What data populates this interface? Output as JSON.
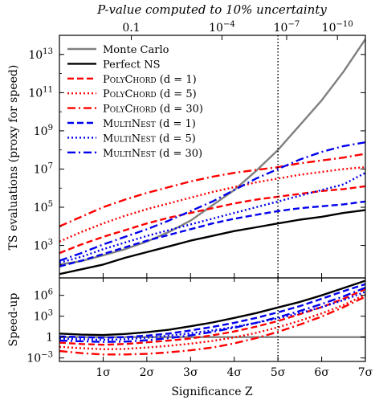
{
  "chart_data": [
    {
      "type": "line",
      "panel": "top",
      "title": "P-value computed to 10% uncertainty",
      "ylabel": "TS evaluations (proxy for speed)",
      "xlim": [
        0,
        7
      ],
      "ylim_log10": [
        1.3,
        14.0
      ],
      "yscale": "log",
      "grid": false,
      "legend_position": "top-left",
      "top_axis_ticks": [
        {
          "z": 1.645,
          "label": "0.1"
        },
        {
          "z": 3.719,
          "label": "10^-4"
        },
        {
          "z": 5.199,
          "label": "10^-7"
        },
        {
          "z": 6.361,
          "label": "10^-10"
        }
      ],
      "y_ticks": [
        {
          "exp": 3,
          "label": "10^3"
        },
        {
          "exp": 5,
          "label": "10^5"
        },
        {
          "exp": 7,
          "label": "10^7"
        },
        {
          "exp": 9,
          "label": "10^9"
        },
        {
          "exp": 11,
          "label": "10^11"
        },
        {
          "exp": 13,
          "label": "10^13"
        }
      ],
      "vline": {
        "x": 5.0,
        "style": "dotted"
      },
      "series": [
        {
          "name": "Monte Carlo",
          "color": "#808080",
          "dash": "solid",
          "x": [
            0,
            0.5,
            1,
            1.5,
            2,
            2.5,
            3,
            3.5,
            4,
            4.5,
            5,
            5.5,
            6,
            6.5,
            7
          ],
          "log10_y": [
            2.0,
            2.18,
            2.48,
            2.8,
            3.2,
            3.7,
            4.3,
            5.1,
            5.9,
            6.9,
            8.0,
            9.3,
            10.6,
            12.1,
            13.8
          ]
        },
        {
          "name": "Perfect NS",
          "color": "#000000",
          "dash": "solid",
          "x": [
            0,
            0.5,
            1,
            1.5,
            2,
            2.5,
            3,
            3.5,
            4,
            4.5,
            5,
            5.5,
            6,
            6.5,
            7
          ],
          "log10_y": [
            1.5,
            1.75,
            2.0,
            2.35,
            2.65,
            2.95,
            3.25,
            3.5,
            3.75,
            3.95,
            4.15,
            4.35,
            4.5,
            4.7,
            4.85
          ]
        },
        {
          "name": "PolyChord (d = 1)",
          "color": "#ff0000",
          "dash": "dashed",
          "x": [
            0,
            0.5,
            1,
            1.5,
            2,
            2.5,
            3,
            3.5,
            4,
            4.5,
            5,
            5.5,
            6,
            6.5,
            7
          ],
          "log10_y": [
            2.6,
            3.05,
            3.45,
            3.8,
            4.15,
            4.45,
            4.7,
            4.95,
            5.2,
            5.4,
            5.55,
            5.7,
            5.85,
            5.95,
            6.1
          ]
        },
        {
          "name": "PolyChord (d = 5)",
          "color": "#ff0000",
          "dash": "dotted",
          "x": [
            0,
            0.5,
            1,
            1.5,
            2,
            2.5,
            3,
            3.5,
            4,
            4.5,
            5,
            5.5,
            6,
            6.5,
            7
          ],
          "log10_y": [
            3.2,
            3.7,
            4.15,
            4.55,
            4.9,
            5.2,
            5.5,
            5.8,
            6.05,
            6.3,
            6.5,
            6.7,
            6.85,
            7.0,
            7.1
          ]
        },
        {
          "name": "PolyChord (d = 30)",
          "color": "#ff0000",
          "dash": "dashdot",
          "x": [
            0,
            0.5,
            1,
            1.5,
            2,
            2.5,
            3,
            3.5,
            4,
            4.5,
            5,
            5.5,
            6,
            6.5,
            7
          ],
          "log10_y": [
            4.0,
            4.5,
            5.0,
            5.4,
            5.75,
            6.05,
            6.35,
            6.6,
            6.8,
            6.95,
            7.1,
            7.3,
            7.45,
            7.6,
            7.8
          ]
        },
        {
          "name": "MultiNest (d = 1)",
          "color": "#0000ee",
          "dash": "dashed",
          "x": [
            0,
            0.5,
            1,
            1.5,
            2,
            2.5,
            3,
            3.5,
            4,
            4.5,
            5,
            5.5,
            6,
            6.5,
            7
          ],
          "log10_y": [
            1.9,
            2.2,
            2.55,
            2.9,
            3.25,
            3.55,
            3.85,
            4.15,
            4.4,
            4.6,
            4.8,
            4.95,
            5.05,
            5.15,
            5.3
          ]
        },
        {
          "name": "MultiNest (d = 5)",
          "color": "#0000ee",
          "dash": "dotted",
          "x": [
            0,
            0.5,
            1,
            1.5,
            2,
            2.5,
            3,
            3.5,
            4,
            4.5,
            5,
            5.5,
            6,
            6.5,
            7
          ],
          "log10_y": [
            2.1,
            2.4,
            2.8,
            3.15,
            3.5,
            3.8,
            4.1,
            4.4,
            4.7,
            5.0,
            5.3,
            5.6,
            5.9,
            6.2,
            6.8
          ]
        },
        {
          "name": "MultiNest (d = 30)",
          "color": "#0000ee",
          "dash": "dashdot",
          "x": [
            0,
            0.5,
            1,
            1.5,
            2,
            2.5,
            3,
            3.5,
            4,
            4.5,
            5,
            5.5,
            6,
            6.5,
            7
          ],
          "log10_y": [
            2.2,
            2.6,
            3.05,
            3.45,
            3.85,
            4.3,
            4.8,
            5.3,
            5.9,
            6.5,
            7.0,
            7.5,
            7.9,
            8.2,
            8.4
          ]
        }
      ],
      "legend_entries": [
        {
          "series": 0,
          "main": "Monte Carlo",
          "suffix": ""
        },
        {
          "series": 1,
          "main": "Perfect NS",
          "suffix": ""
        },
        {
          "series": 2,
          "main": "PolyChord",
          "suffix": " (d = 1)"
        },
        {
          "series": 3,
          "main": "PolyChord",
          "suffix": " (d = 5)"
        },
        {
          "series": 4,
          "main": "PolyChord",
          "suffix": " (d = 30)"
        },
        {
          "series": 5,
          "main": "MultiNest",
          "suffix": " (d = 1)"
        },
        {
          "series": 6,
          "main": "MultiNest",
          "suffix": " (d = 5)"
        },
        {
          "series": 7,
          "main": "MultiNest",
          "suffix": " (d = 30)"
        }
      ]
    },
    {
      "type": "line",
      "panel": "bottom",
      "xlabel": "Significance Z",
      "ylabel": "Speed-up",
      "xlim": [
        0,
        7
      ],
      "ylim_log10": [
        -3.5,
        8.5
      ],
      "yscale": "log",
      "x_ticks": [
        {
          "z": 1,
          "label": "1σ"
        },
        {
          "z": 2,
          "label": "2σ"
        },
        {
          "z": 3,
          "label": "3σ"
        },
        {
          "z": 4,
          "label": "4σ"
        },
        {
          "z": 5,
          "label": "5σ"
        },
        {
          "z": 6,
          "label": "6σ"
        },
        {
          "z": 7,
          "label": "7σ"
        }
      ],
      "y_ticks": [
        {
          "exp": -3,
          "label": "10^-3"
        },
        {
          "exp": 0,
          "label": "1"
        },
        {
          "exp": 3,
          "label": "10^3"
        },
        {
          "exp": 6,
          "label": "10^6"
        }
      ],
      "vline": {
        "x": 5.0,
        "style": "dotted"
      },
      "series": [
        {
          "name": "Monte Carlo",
          "color": "#808080",
          "dash": "solid",
          "x": [
            0,
            7
          ],
          "log10_y": [
            0,
            0
          ]
        },
        {
          "name": "Perfect NS",
          "color": "#000000",
          "dash": "solid",
          "x": [
            0,
            0.5,
            1,
            1.5,
            2,
            2.5,
            3,
            3.5,
            4,
            4.5,
            5,
            5.5,
            6,
            6.5,
            7
          ],
          "log10_y": [
            0.5,
            0.35,
            0.3,
            0.45,
            0.7,
            1.05,
            1.55,
            2.1,
            2.75,
            3.45,
            4.25,
            5.05,
            6.0,
            7.05,
            8.1
          ]
        },
        {
          "name": "PolyChord (d = 1)",
          "color": "#ff0000",
          "dash": "dashed",
          "x": [
            0,
            0.5,
            1,
            1.5,
            2,
            2.5,
            3,
            3.5,
            4,
            4.5,
            5,
            5.5,
            6,
            6.5,
            7
          ],
          "log10_y": [
            -0.8,
            -1.0,
            -1.1,
            -1.0,
            -0.75,
            -0.5,
            -0.2,
            0.25,
            0.8,
            1.5,
            2.3,
            3.3,
            4.3,
            5.5,
            6.9
          ]
        },
        {
          "name": "PolyChord (d = 5)",
          "color": "#ff0000",
          "dash": "dotted",
          "x": [
            0,
            0.5,
            1,
            1.5,
            2,
            2.5,
            3,
            3.5,
            4,
            4.5,
            5,
            5.5,
            6,
            6.5,
            7
          ],
          "log10_y": [
            -1.4,
            -1.6,
            -1.75,
            -1.7,
            -1.5,
            -1.25,
            -0.95,
            -0.55,
            -0.05,
            0.6,
            1.4,
            2.35,
            3.4,
            4.6,
            6.1
          ]
        },
        {
          "name": "PolyChord (d = 30)",
          "color": "#ff0000",
          "dash": "dashdot",
          "x": [
            0,
            0.5,
            1,
            1.5,
            2,
            2.5,
            3,
            3.5,
            4,
            4.5,
            5,
            5.5,
            6,
            6.5,
            7
          ],
          "log10_y": [
            -2.0,
            -2.3,
            -2.5,
            -2.5,
            -2.4,
            -2.2,
            -1.9,
            -1.5,
            -0.9,
            -0.15,
            0.75,
            1.8,
            2.95,
            4.3,
            5.8
          ]
        },
        {
          "name": "MultiNest (d = 1)",
          "color": "#0000ee",
          "dash": "dashed",
          "x": [
            0,
            0.5,
            1,
            1.5,
            2,
            2.5,
            3,
            3.5,
            4,
            4.5,
            5,
            5.5,
            6,
            6.5,
            7
          ],
          "log10_y": [
            0.1,
            0.0,
            -0.1,
            0.0,
            0.2,
            0.5,
            0.95,
            1.45,
            2.05,
            2.75,
            3.55,
            4.45,
            5.5,
            6.6,
            7.6
          ]
        },
        {
          "name": "MultiNest (d = 5)",
          "color": "#0000ee",
          "dash": "dotted",
          "x": [
            0,
            0.5,
            1,
            1.5,
            2,
            2.5,
            3,
            3.5,
            4,
            4.5,
            5,
            5.5,
            6,
            6.5,
            7
          ],
          "log10_y": [
            -0.2,
            -0.3,
            -0.4,
            -0.3,
            -0.1,
            0.2,
            0.55,
            0.95,
            1.45,
            2.05,
            2.7,
            3.45,
            4.3,
            5.3,
            6.5
          ]
        },
        {
          "name": "MultiNest (d = 30)",
          "color": "#0000ee",
          "dash": "dashdot",
          "x": [
            0,
            0.5,
            1,
            1.5,
            2,
            2.5,
            3,
            3.5,
            4,
            4.5,
            5,
            5.5,
            6,
            6.5,
            7
          ],
          "log10_y": [
            -0.5,
            -0.6,
            -0.7,
            -0.65,
            -0.45,
            -0.15,
            0.25,
            0.75,
            1.35,
            2.05,
            2.85,
            3.75,
            4.75,
            5.85,
            7.1
          ]
        }
      ]
    }
  ]
}
